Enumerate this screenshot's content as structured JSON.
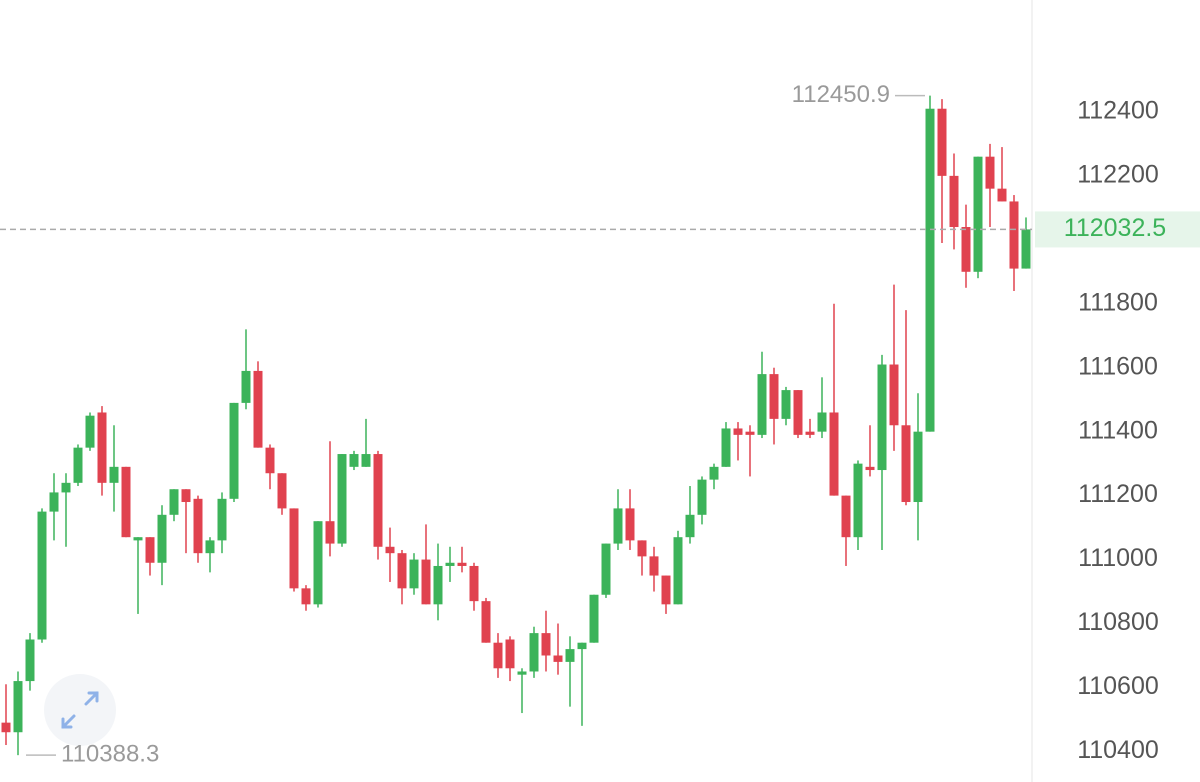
{
  "chart_data": {
    "type": "candlestick",
    "open": [
      110490,
      110460,
      110620,
      110750,
      111150,
      111210,
      111240,
      111350,
      111460,
      111240,
      111290,
      111060,
      111070,
      110990,
      111140,
      111220,
      111190,
      111020,
      111060,
      111190,
      111490,
      111590,
      111350,
      111270,
      111160,
      110910,
      110860,
      111120,
      111050,
      111290,
      111290,
      111330,
      111040,
      111020,
      110910,
      111000,
      110860,
      110980,
      110990,
      110980,
      110870,
      110740,
      110750,
      110640,
      110650,
      110770,
      110700,
      110680,
      110720,
      110740,
      110890,
      111050,
      111160,
      111060,
      111010,
      110950,
      110860,
      111070,
      111140,
      111250,
      111290,
      111410,
      111400,
      111390,
      111580,
      111440,
      111530,
      111400,
      111400,
      111460,
      111200,
      111070,
      111290,
      111280,
      111610,
      111420,
      111180,
      111400,
      112410,
      112200,
      112040,
      111900,
      112260,
      112160,
      112120,
      111910
    ],
    "high": [
      110610,
      110650,
      110770,
      111160,
      111270,
      111270,
      111360,
      111460,
      111480,
      111420,
      111290,
      111070,
      111070,
      111170,
      111220,
      111220,
      111200,
      111070,
      111210,
      111490,
      111720,
      111620,
      111360,
      111270,
      111160,
      110920,
      111120,
      111370,
      111330,
      111340,
      111440,
      111340,
      111100,
      111030,
      111020,
      111110,
      111050,
      111040,
      111040,
      110990,
      110880,
      110770,
      110760,
      110660,
      110790,
      110840,
      110800,
      110760,
      110740,
      110890,
      111050,
      111220,
      111220,
      111060,
      111040,
      110950,
      111090,
      111230,
      111260,
      111300,
      111430,
      111430,
      111420,
      111650,
      111600,
      111540,
      111530,
      111440,
      111570,
      111800,
      111200,
      111310,
      111420,
      111640,
      111860,
      111780,
      111520,
      112450.9,
      112440,
      112270,
      112110,
      112260,
      112300,
      112290,
      112140,
      112070
    ],
    "low": [
      110420,
      110388.3,
      110590,
      110740,
      111060,
      111040,
      111230,
      111340,
      111200,
      111150,
      111070,
      110830,
      110950,
      110920,
      111120,
      111020,
      110990,
      110960,
      111020,
      111180,
      111470,
      111350,
      111220,
      111140,
      110900,
      110840,
      110850,
      111010,
      111040,
      111280,
      111290,
      111000,
      110930,
      110860,
      110890,
      110860,
      110810,
      110930,
      110960,
      110840,
      110740,
      110630,
      110620,
      110520,
      110630,
      110650,
      110640,
      110540,
      110480,
      110740,
      110880,
      111030,
      111030,
      110950,
      110900,
      110830,
      110860,
      111050,
      111110,
      111220,
      111290,
      111310,
      111260,
      111380,
      111360,
      111420,
      111380,
      111380,
      111380,
      111200,
      110980,
      111030,
      111260,
      111030,
      111340,
      111170,
      111060,
      111400,
      111990,
      111970,
      111850,
      111880,
      112040,
      112120,
      111840,
      111910
    ],
    "close": [
      110460,
      110620,
      110750,
      111150,
      111210,
      111240,
      111350,
      111450,
      111240,
      111290,
      111070,
      111070,
      110990,
      111140,
      111220,
      111180,
      111020,
      111060,
      111190,
      111490,
      111590,
      111350,
      111270,
      111160,
      110910,
      110860,
      111120,
      111050,
      111330,
      111330,
      111330,
      111040,
      111020,
      110910,
      111000,
      110860,
      110980,
      110990,
      110980,
      110870,
      110740,
      110660,
      110660,
      110650,
      110770,
      110700,
      110680,
      110720,
      110740,
      110890,
      111050,
      111160,
      111060,
      111010,
      110950,
      110860,
      111070,
      111140,
      111250,
      111290,
      111410,
      111390,
      111390,
      111580,
      111440,
      111530,
      111390,
      111390,
      111460,
      111200,
      111070,
      111300,
      111280,
      111610,
      111420,
      111180,
      111400,
      112410,
      112200,
      112040,
      111900,
      112260,
      112160,
      112120,
      111910,
      112032.5
    ],
    "up_color": "#3cb35a",
    "down_color": "#e0424f",
    "ylim": [
      110320,
      112750
    ],
    "yticks": [
      110400,
      110600,
      110800,
      111000,
      111200,
      111400,
      111600,
      111800,
      112000,
      112200,
      112400
    ],
    "grid": false
  }
}
